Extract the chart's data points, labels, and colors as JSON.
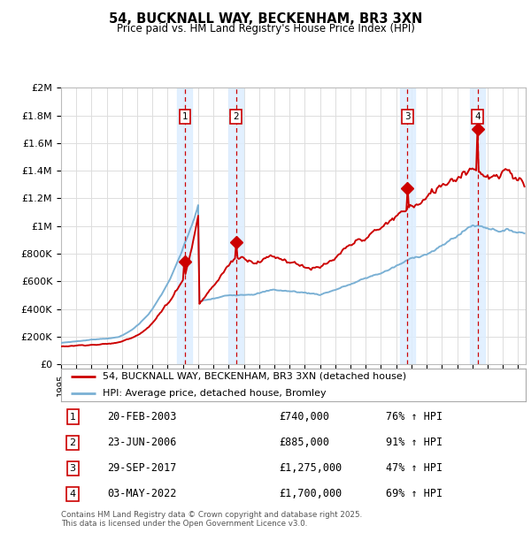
{
  "title": "54, BUCKNALL WAY, BECKENHAM, BR3 3XN",
  "subtitle": "Price paid vs. HM Land Registry's House Price Index (HPI)",
  "ylim": [
    0,
    2000000
  ],
  "yticks": [
    0,
    200000,
    400000,
    600000,
    800000,
    1000000,
    1200000,
    1400000,
    1600000,
    1800000,
    2000000
  ],
  "ytick_labels": [
    "£0",
    "£200K",
    "£400K",
    "£600K",
    "£800K",
    "£1M",
    "£1.2M",
    "£1.4M",
    "£1.6M",
    "£1.8M",
    "£2M"
  ],
  "xlim_start": 1995.0,
  "xlim_end": 2025.5,
  "sale_dates": [
    2003.12,
    2006.48,
    2017.74,
    2022.34
  ],
  "sale_prices": [
    740000,
    885000,
    1275000,
    1700000
  ],
  "sale_labels": [
    "1",
    "2",
    "3",
    "4"
  ],
  "vline_color": "#cc0000",
  "hpi_color": "#7ab0d4",
  "price_color": "#cc0000",
  "legend_label_price": "54, BUCKNALL WAY, BECKENHAM, BR3 3XN (detached house)",
  "legend_label_hpi": "HPI: Average price, detached house, Bromley",
  "table_entries": [
    {
      "num": "1",
      "date": "20-FEB-2003",
      "price": "£740,000",
      "change": "76% ↑ HPI"
    },
    {
      "num": "2",
      "date": "23-JUN-2006",
      "price": "£885,000",
      "change": "91% ↑ HPI"
    },
    {
      "num": "3",
      "date": "29-SEP-2017",
      "price": "£1,275,000",
      "change": "47% ↑ HPI"
    },
    {
      "num": "4",
      "date": "03-MAY-2022",
      "price": "£1,700,000",
      "change": "69% ↑ HPI"
    }
  ],
  "footer": "Contains HM Land Registry data © Crown copyright and database right 2025.\nThis data is licensed under the Open Government Licence v3.0.",
  "background_color": "#ffffff",
  "grid_color": "#dddddd",
  "shade_color": "#ddeeff"
}
